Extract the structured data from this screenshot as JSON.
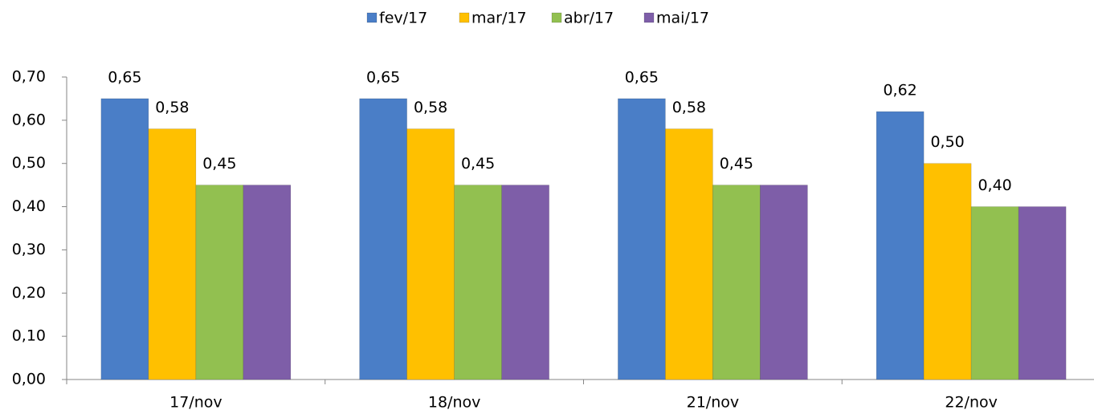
{
  "chart_data": {
    "type": "bar",
    "categories": [
      "17/nov",
      "18/nov",
      "21/nov",
      "22/nov"
    ],
    "series": [
      {
        "name": "fev/17",
        "color": "#4a7ec7",
        "values": [
          0.65,
          0.65,
          0.65,
          0.62
        ],
        "value_labels": [
          "0,65",
          "0,65",
          "0,65",
          "0,62"
        ]
      },
      {
        "name": "mar/17",
        "color": "#ffc000",
        "values": [
          0.58,
          0.58,
          0.58,
          0.5
        ],
        "value_labels": [
          "0,58",
          "0,58",
          "0,58",
          "0,50"
        ]
      },
      {
        "name": "abr/17",
        "color": "#92c050",
        "values": [
          0.45,
          0.45,
          0.45,
          0.4
        ],
        "value_labels": [
          "0,45",
          "0,45",
          "0,45",
          "0,40"
        ]
      },
      {
        "name": "mai/17",
        "color": "#7e5ea8",
        "values": [
          0.45,
          0.45,
          0.45,
          0.4
        ]
      }
    ],
    "ylim": [
      0,
      0.7
    ],
    "yticks": [
      {
        "value": 0,
        "label": "0,00"
      },
      {
        "value": 0.1,
        "label": "0,10"
      },
      {
        "value": 0.2,
        "label": "0,20"
      },
      {
        "value": 0.3,
        "label": "0,30"
      },
      {
        "value": 0.4,
        "label": "0,40"
      },
      {
        "value": 0.5,
        "label": "0,50"
      },
      {
        "value": 0.6,
        "label": "0,60"
      },
      {
        "value": 0.7,
        "label": "0,70"
      }
    ],
    "legend": "top",
    "grid": false
  }
}
